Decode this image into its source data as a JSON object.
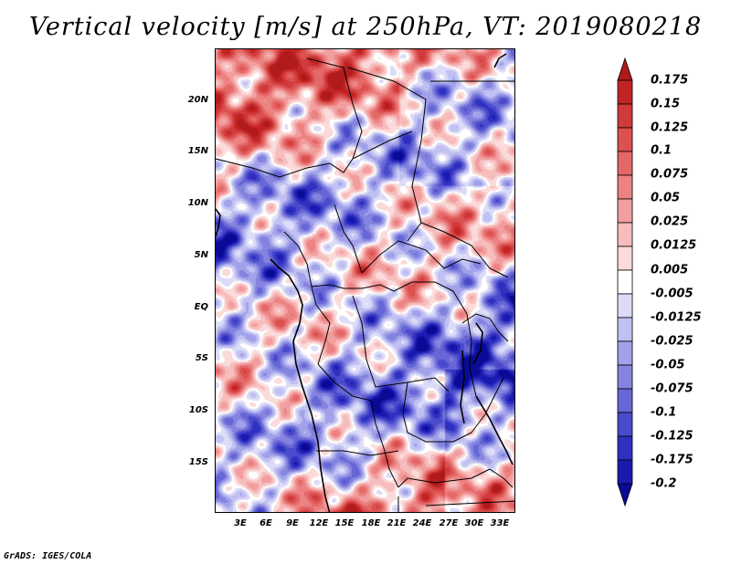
{
  "title": "Vertical velocity [m/s] at 250hPa, VT: 2019080218",
  "credit": "GrADS: IGES/COLA",
  "map": {
    "lon_range": [
      0,
      35
    ],
    "lat_range": [
      -20,
      25
    ],
    "lat_labels": [
      "20N",
      "15N",
      "10N",
      "5N",
      "EQ",
      "5S",
      "10S",
      "15S"
    ],
    "lat_values": [
      20,
      15,
      10,
      5,
      0,
      -5,
      -10,
      -15
    ],
    "lon_labels": [
      "3E",
      "6E",
      "9E",
      "12E",
      "15E",
      "18E",
      "21E",
      "24E",
      "27E",
      "30E",
      "33E"
    ],
    "lon_values": [
      3,
      6,
      9,
      12,
      15,
      18,
      21,
      24,
      27,
      30,
      33
    ]
  },
  "colorbar": {
    "levels": [
      "0.175",
      "0.15",
      "0.125",
      "0.1",
      "0.075",
      "0.05",
      "0.025",
      "0.0125",
      "0.005",
      "-0.005",
      "-0.0125",
      "-0.025",
      "-0.05",
      "-0.075",
      "-0.1",
      "-0.125",
      "-0.175",
      "-0.2"
    ],
    "colors": [
      "#b01a1a",
      "#c22424",
      "#d03a3a",
      "#dc5050",
      "#e46868",
      "#ec8282",
      "#f29e9e",
      "#f7bcbc",
      "#fbdada",
      "#ffffff",
      "#dcdcf8",
      "#c0c0f2",
      "#a2a2ea",
      "#8484e0",
      "#6666d6",
      "#4a4acc",
      "#3030c0",
      "#1a1ab0",
      "#0a0a96"
    ]
  },
  "chart_data": {
    "type": "heatmap",
    "title": "Vertical velocity [m/s] at 250hPa, VT: 2019080218",
    "variable": "Vertical velocity",
    "units": "m/s",
    "level": "250hPa",
    "valid_time": "2019080218",
    "x_range": [
      0,
      35
    ],
    "y_range": [
      -20,
      25
    ],
    "x_ticks": [
      "3E",
      "6E",
      "9E",
      "12E",
      "15E",
      "18E",
      "21E",
      "24E",
      "27E",
      "30E",
      "33E"
    ],
    "y_ticks": [
      "20N",
      "15N",
      "10N",
      "5N",
      "EQ",
      "5S",
      "10S",
      "15S"
    ],
    "contour_levels": [
      -0.2,
      -0.175,
      -0.125,
      -0.1,
      -0.075,
      -0.05,
      -0.025,
      -0.0125,
      -0.005,
      0.005,
      0.0125,
      0.025,
      0.05,
      0.075,
      0.1,
      0.125,
      0.15,
      0.175
    ]
  }
}
